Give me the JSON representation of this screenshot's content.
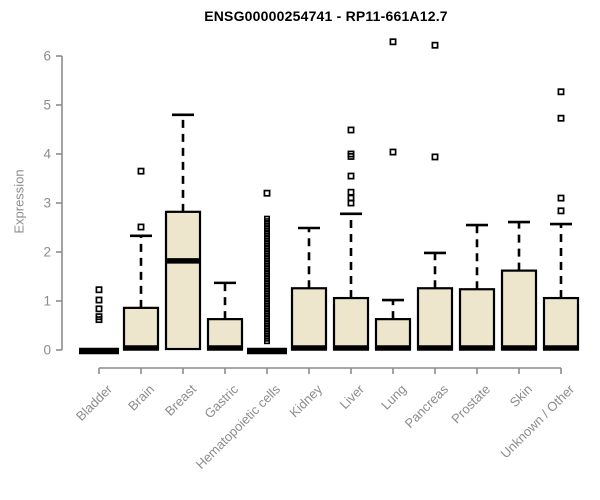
{
  "colors": {
    "box_fill": "#EDE6CD",
    "box_border": "#000000",
    "median_color": "#000000",
    "whisker_color": "#000000",
    "axis_gray": "#8C8C8C",
    "tick_text_gray": "#8C8C8C",
    "title_color": "#000000",
    "background": "#FFFFFF"
  },
  "chart_data": {
    "type": "boxplot",
    "title": "ENSG00000254741 - RP11-661A12.7",
    "ylabel": "Expression",
    "xlabel": "",
    "ylim": [
      0,
      6.4
    ],
    "yticks": [
      0,
      1,
      2,
      3,
      4,
      5,
      6
    ],
    "grid": false,
    "legend": null,
    "categories": [
      "Bladder",
      "Brain",
      "Breast",
      "Gastric",
      "Hematopoietic cells",
      "Kidney",
      "Liver",
      "Lung",
      "Pancreas",
      "Prostate",
      "Skin",
      "Unknown / Other"
    ],
    "series": [
      {
        "name": "Bladder",
        "whisker_low": 0,
        "q1": 0,
        "median": 0.02,
        "q3": 0.04,
        "whisker_high": 0.04,
        "outliers": [
          0.62,
          0.68,
          0.84,
          1.02,
          1.23
        ]
      },
      {
        "name": "Brain",
        "whisker_low": 0,
        "q1": 0.02,
        "median": 0.04,
        "q3": 0.86,
        "whisker_high": 2.33,
        "outliers": [
          2.51,
          3.65
        ]
      },
      {
        "name": "Breast",
        "whisker_low": 0,
        "q1": 0.02,
        "median": 1.82,
        "q3": 2.82,
        "whisker_high": 4.8,
        "outliers": []
      },
      {
        "name": "Gastric",
        "whisker_low": 0,
        "q1": 0.02,
        "median": 0.04,
        "q3": 0.63,
        "whisker_high": 1.37,
        "outliers": []
      },
      {
        "name": "Hematopoietic cells",
        "whisker_low": 0,
        "q1": 0,
        "median": 0.02,
        "q3": 0.04,
        "whisker_high": 0.04,
        "outliers": [
          3.2
        ],
        "outlier_stack": {
          "min": 0.18,
          "max": 2.68,
          "count": 50
        }
      },
      {
        "name": "Kidney",
        "whisker_low": 0,
        "q1": 0.02,
        "median": 0.04,
        "q3": 1.26,
        "whisker_high": 2.49,
        "outliers": []
      },
      {
        "name": "Liver",
        "whisker_low": 0,
        "q1": 0.02,
        "median": 0.04,
        "q3": 1.06,
        "whisker_high": 2.78,
        "outliers": [
          3.0,
          3.1,
          3.22,
          3.55,
          3.95,
          4.0,
          4.49
        ]
      },
      {
        "name": "Lung",
        "whisker_low": 0,
        "q1": 0.02,
        "median": 0.04,
        "q3": 0.63,
        "whisker_high": 1.02,
        "outliers": [
          4.04,
          6.29
        ]
      },
      {
        "name": "Pancreas",
        "whisker_low": 0,
        "q1": 0.02,
        "median": 0.04,
        "q3": 1.26,
        "whisker_high": 1.98,
        "outliers": [
          3.94,
          6.22
        ]
      },
      {
        "name": "Prostate",
        "whisker_low": 0,
        "q1": 0.02,
        "median": 0.04,
        "q3": 1.24,
        "whisker_high": 2.55,
        "outliers": []
      },
      {
        "name": "Skin",
        "whisker_low": 0,
        "q1": 0.02,
        "median": 0.04,
        "q3": 1.62,
        "whisker_high": 2.61,
        "outliers": []
      },
      {
        "name": "Unknown / Other",
        "whisker_low": 0,
        "q1": 0.02,
        "median": 0.04,
        "q3": 1.06,
        "whisker_high": 2.57,
        "outliers": [
          2.84,
          3.1,
          4.73,
          5.27
        ]
      }
    ]
  }
}
